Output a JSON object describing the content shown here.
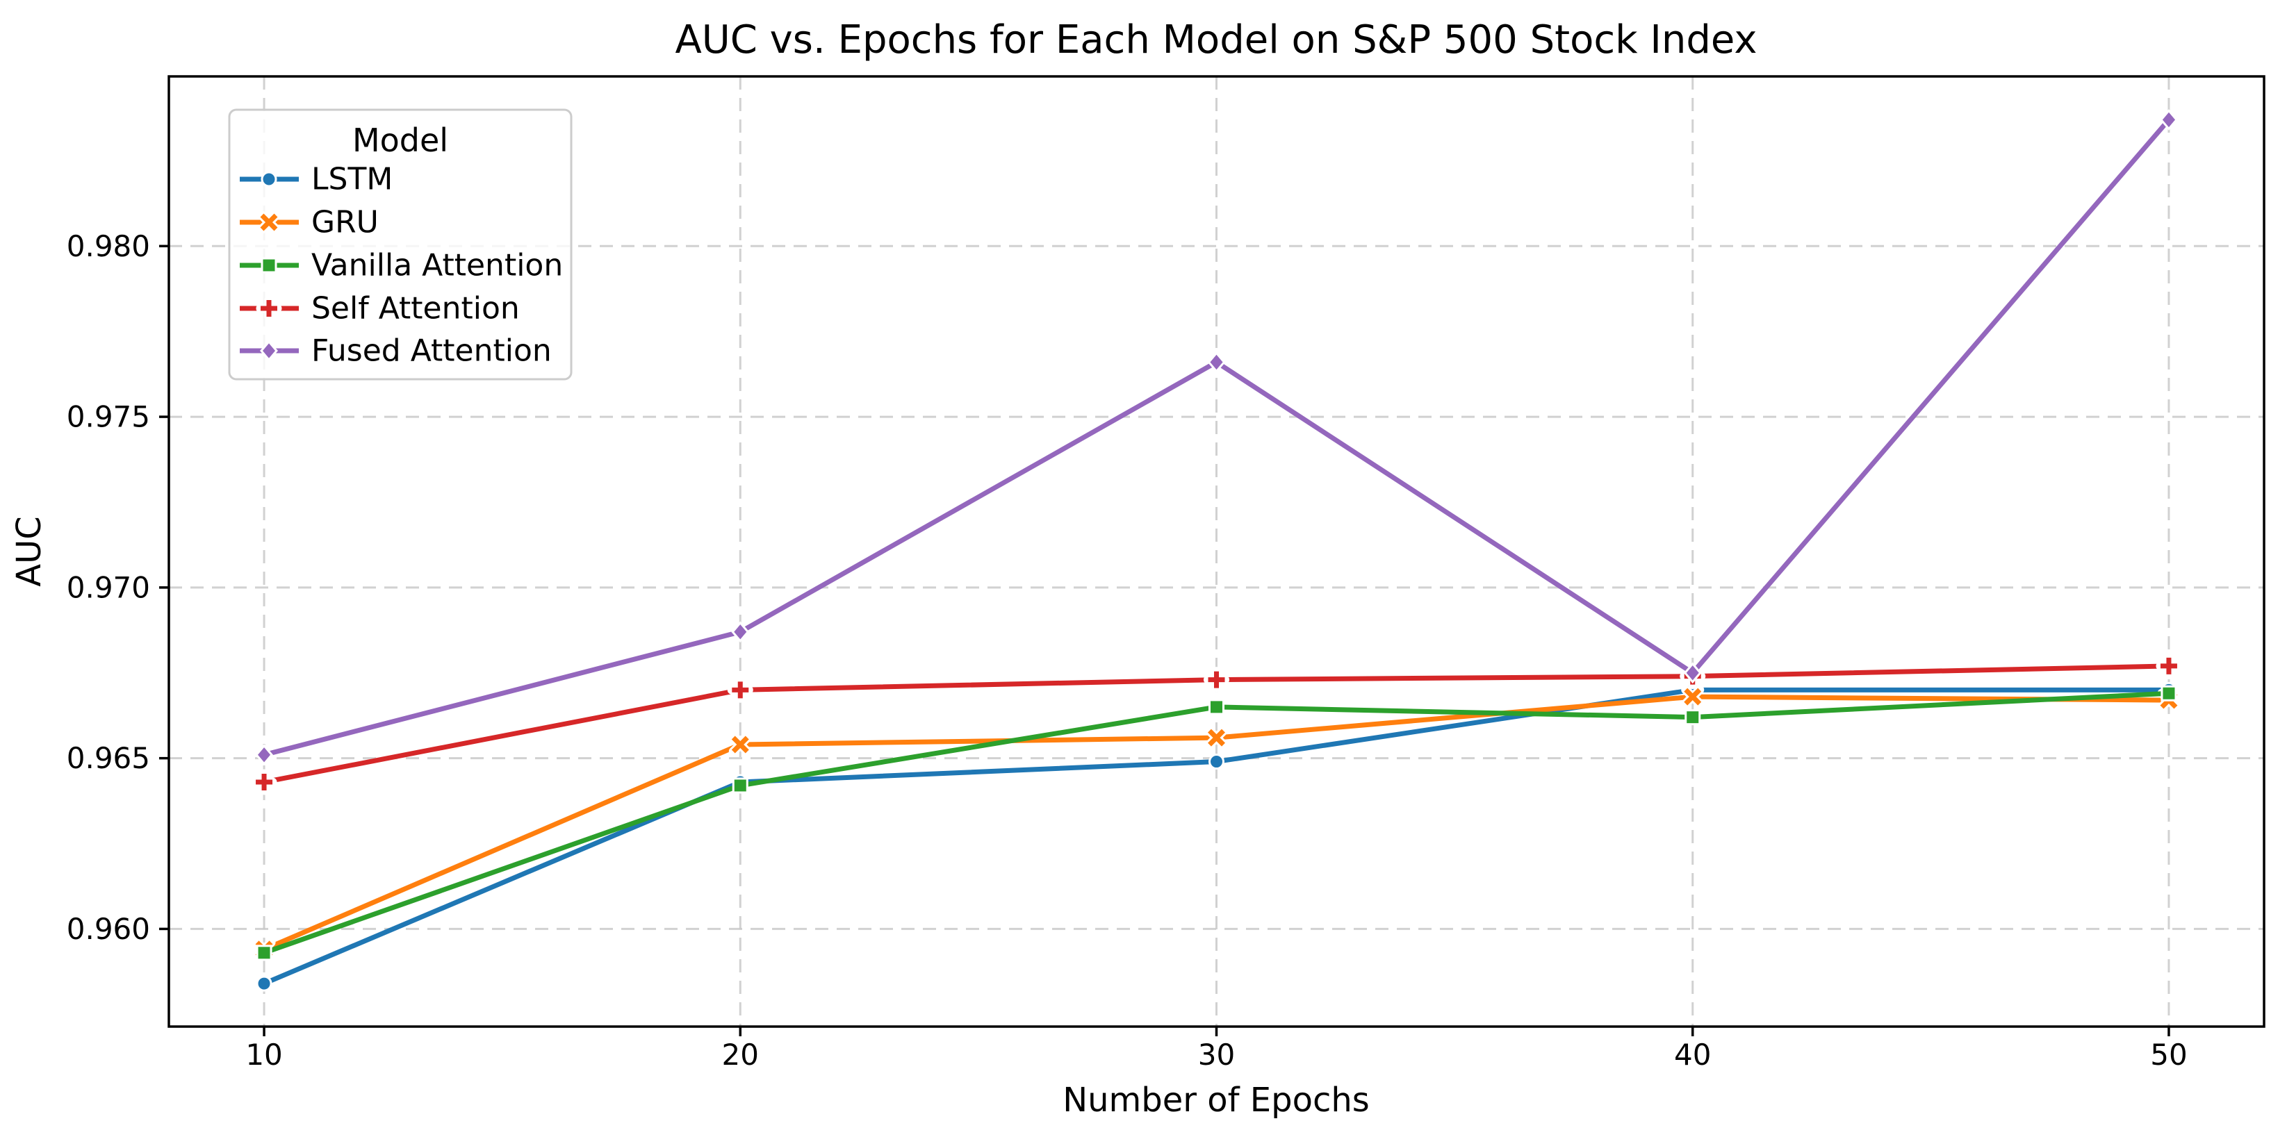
{
  "figure": {
    "background": "#ffffff",
    "spine_color": "#000000",
    "grid_color": "#c9c9c9",
    "text_color": "#000000"
  },
  "chart_data": {
    "type": "line",
    "title": "AUC vs. Epochs for Each Model on S&P 500 Stock Index",
    "xlabel": "Number of Epochs",
    "ylabel": "AUC",
    "x": [
      10,
      20,
      30,
      40,
      50
    ],
    "xticks": [
      10,
      20,
      30,
      40,
      50
    ],
    "ytick_values": [
      0.96,
      0.965,
      0.97,
      0.975,
      0.98
    ],
    "ytick_labels": [
      "0.960",
      "0.965",
      "0.970",
      "0.975",
      "0.980"
    ],
    "xlim": [
      8,
      52
    ],
    "ylim": [
      0.95714,
      0.98497
    ],
    "grid": true,
    "grid_style": "dashed",
    "legend": {
      "title": "Model",
      "position": "upper left"
    },
    "series": [
      {
        "name": "LSTM",
        "color": "#1f77b4",
        "marker": "circle",
        "values": [
          0.9584,
          0.9643,
          0.9649,
          0.967,
          0.967
        ]
      },
      {
        "name": "GRU",
        "color": "#ff7f0e",
        "marker": "x",
        "values": [
          0.9594,
          0.9654,
          0.9656,
          0.9668,
          0.9667
        ]
      },
      {
        "name": "Vanilla Attention",
        "color": "#2ca02c",
        "marker": "square",
        "values": [
          0.9593,
          0.9642,
          0.9665,
          0.9662,
          0.9669
        ]
      },
      {
        "name": "Self Attention",
        "color": "#d62728",
        "marker": "plus",
        "values": [
          0.9643,
          0.967,
          0.9673,
          0.9674,
          0.9677
        ]
      },
      {
        "name": "Fused Attention",
        "color": "#9467bd",
        "marker": "diamond",
        "values": [
          0.9651,
          0.9687,
          0.9766,
          0.9675,
          0.9837
        ]
      }
    ]
  }
}
